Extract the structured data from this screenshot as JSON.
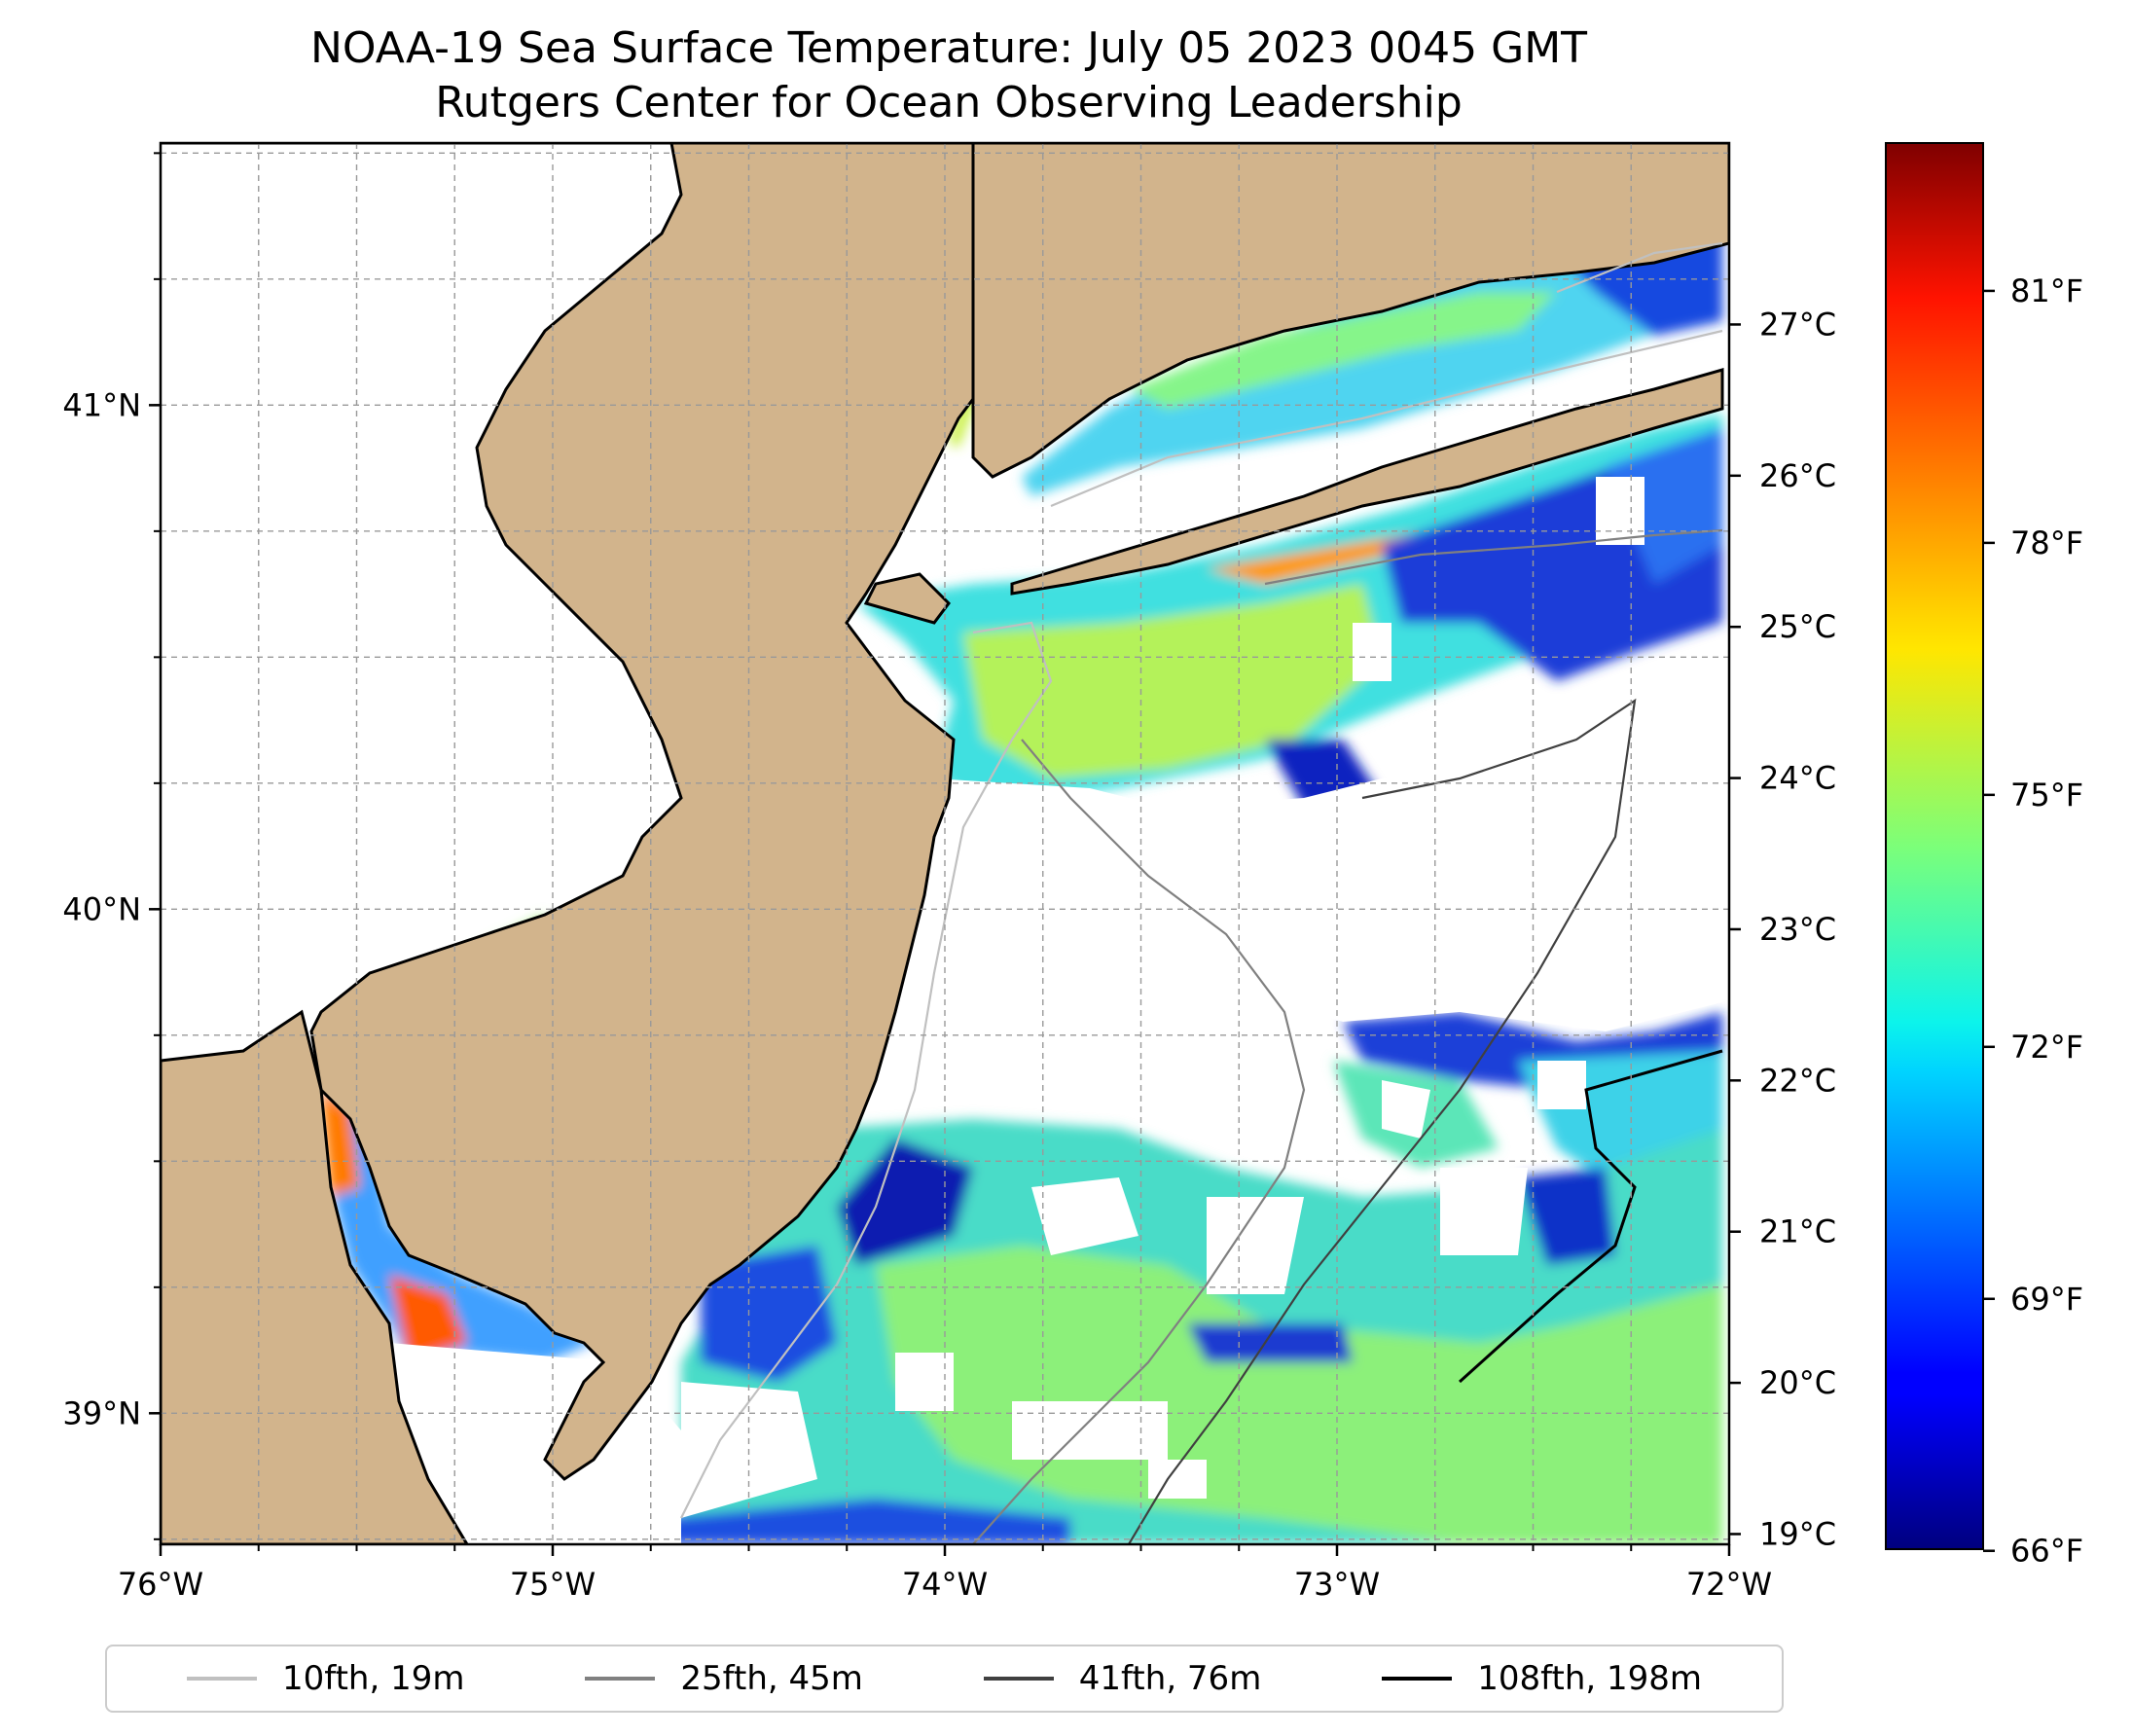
{
  "title": {
    "line1": "NOAA-19 Sea Surface Temperature: July 05 2023 0045 GMT",
    "line2": "Rutgers Center for Ocean Observing Leadership"
  },
  "map": {
    "extent": {
      "lon_min": -76.0,
      "lon_max": -72.0,
      "lat_min": 38.74,
      "lat_max": 41.52
    },
    "x_ticks": [
      {
        "value": -76,
        "label": "76°W"
      },
      {
        "value": -75,
        "label": "75°W"
      },
      {
        "value": -74,
        "label": "74°W"
      },
      {
        "value": -73,
        "label": "73°W"
      },
      {
        "value": -72,
        "label": "72°W"
      }
    ],
    "y_ticks": [
      {
        "value": 39,
        "label": "39°N"
      },
      {
        "value": 40,
        "label": "40°N"
      },
      {
        "value": 41,
        "label": "41°N"
      }
    ],
    "gridlines": true,
    "land_color": "#d2b48c",
    "no_data_color": "#ffffff"
  },
  "colorbar": {
    "colormap": "jet",
    "range_c": [
      18.9,
      28.2
    ],
    "celsius_ticks": [
      {
        "value": 19,
        "label": "19°C"
      },
      {
        "value": 20,
        "label": "20°C"
      },
      {
        "value": 21,
        "label": "21°C"
      },
      {
        "value": 22,
        "label": "22°C"
      },
      {
        "value": 23,
        "label": "23°C"
      },
      {
        "value": 24,
        "label": "24°C"
      },
      {
        "value": 25,
        "label": "25°C"
      },
      {
        "value": 26,
        "label": "26°C"
      },
      {
        "value": 27,
        "label": "27°C"
      }
    ],
    "fahrenheit_ticks": [
      {
        "value": 66,
        "label": "66°F"
      },
      {
        "value": 69,
        "label": "69°F"
      },
      {
        "value": 72,
        "label": "72°F"
      },
      {
        "value": 75,
        "label": "75°F"
      },
      {
        "value": 78,
        "label": "78°F"
      },
      {
        "value": 81,
        "label": "81°F"
      }
    ]
  },
  "legend": [
    {
      "label": "10fth, 19m",
      "color": "#c0c0c0"
    },
    {
      "label": "25fth, 45m",
      "color": "#808080"
    },
    {
      "label": "41fth, 76m",
      "color": "#404040"
    },
    {
      "label": "108fth, 198m",
      "color": "#000000"
    }
  ]
}
